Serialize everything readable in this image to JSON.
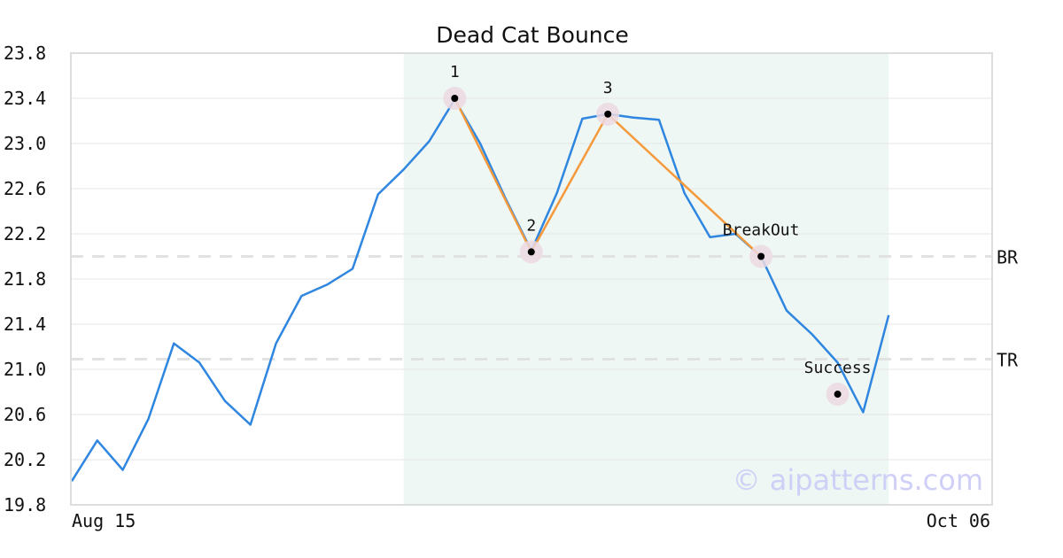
{
  "chart_data": {
    "type": "line",
    "title": "Dead Cat Bounce",
    "xlabel": "",
    "ylabel": "",
    "x_tick_labels": [
      "Aug 15",
      "Oct 06"
    ],
    "ylim": [
      19.8,
      23.8
    ],
    "y_ticks": [
      "23.8",
      "23.4",
      "23.0",
      "22.6",
      "22.2",
      "21.8",
      "21.4",
      "21.0",
      "20.6",
      "20.2",
      "19.8"
    ],
    "grid": true,
    "series": [
      {
        "color": "#2f86e0",
        "values": [
          20.01,
          20.37,
          20.11,
          20.56,
          21.23,
          21.06,
          20.72,
          20.51,
          21.23,
          21.65,
          21.75,
          21.89,
          22.55,
          22.77,
          23.02,
          23.39,
          23.0,
          22.51,
          22.05,
          22.56,
          23.22,
          23.26,
          23.23,
          23.21,
          22.56,
          22.17,
          22.2,
          22.0,
          21.52,
          21.31,
          21.06,
          20.62,
          21.48
        ]
      }
    ],
    "pattern_line": {
      "color": "#f59a3c",
      "points": [
        [
          15,
          23.4
        ],
        [
          18,
          22.04
        ],
        [
          21,
          23.26
        ],
        [
          27,
          22.0
        ]
      ]
    },
    "markers": [
      {
        "label": "1",
        "index": 15,
        "value": 23.4
      },
      {
        "label": "2",
        "index": 18,
        "value": 22.04
      },
      {
        "label": "3",
        "index": 21,
        "value": 23.26
      },
      {
        "label": "BreakOut",
        "index": 27,
        "value": 22.0
      },
      {
        "label": "Success",
        "index": 30,
        "value": 20.78
      }
    ],
    "levels": [
      {
        "label": "BR",
        "value": 22.0
      },
      {
        "label": "TR",
        "value": 21.09
      }
    ],
    "highlight_range": [
      13,
      32
    ],
    "highlight_color": "#eef7f3",
    "watermark": "© aipatterns.com"
  }
}
